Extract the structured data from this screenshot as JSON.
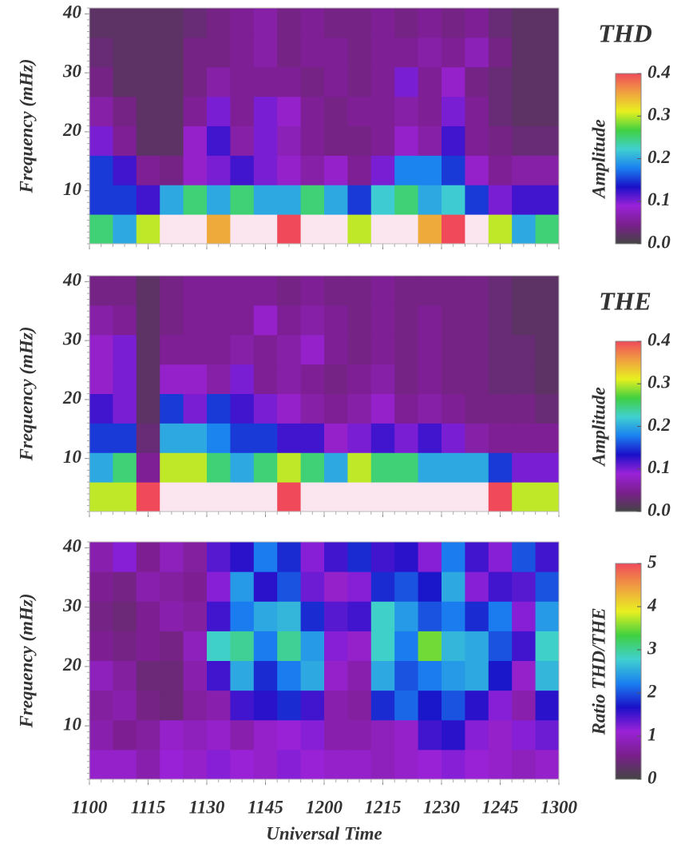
{
  "chart_data": [
    {
      "type": "heatmap",
      "title": "THD",
      "ylabel": "Frequency (mHz)",
      "xlim": [
        660,
        780
      ],
      "ylim": [
        1,
        41
      ],
      "yticks": [
        10,
        20,
        30,
        40
      ],
      "colorbar": {
        "label": "Amplitude",
        "lim": [
          0,
          0.4
        ],
        "ticks": [
          {
            "value": 0,
            "label": "0.0"
          },
          0.1,
          0.2,
          0.3,
          0.4
        ]
      },
      "colormap": [
        "#444444",
        "#7a1f8c",
        "#9a22d8",
        "#1a10c8",
        "#1a80f0",
        "#40d0d0",
        "#40d040",
        "#e8f020",
        "#f0a040",
        "#f04a5a"
      ],
      "over_color": "#fbe6f0",
      "z": [
        [
          0.25,
          0.2,
          0.3,
          0.45,
          0.45,
          0.35,
          0.45,
          0.45,
          0.4,
          0.45,
          0.45,
          0.3,
          0.45,
          0.45,
          0.35,
          0.4,
          0.45,
          0.3,
          0.2,
          0.25
        ],
        [
          0.15,
          0.15,
          0.12,
          0.2,
          0.25,
          0.2,
          0.25,
          0.2,
          0.2,
          0.25,
          0.2,
          0.15,
          0.22,
          0.25,
          0.2,
          0.22,
          0.15,
          0.1,
          0.12,
          0.12
        ],
        [
          0.15,
          0.12,
          0.05,
          0.04,
          0.08,
          0.1,
          0.12,
          0.1,
          0.08,
          0.06,
          0.08,
          0.05,
          0.1,
          0.18,
          0.18,
          0.15,
          0.08,
          0.05,
          0.06,
          0.06
        ],
        [
          0.1,
          0.05,
          0.02,
          0.02,
          0.08,
          0.12,
          0.06,
          0.1,
          0.07,
          0.05,
          0.04,
          0.04,
          0.05,
          0.08,
          0.06,
          0.12,
          0.05,
          0.04,
          0.03,
          0.03
        ],
        [
          0.06,
          0.04,
          0.02,
          0.02,
          0.05,
          0.1,
          0.05,
          0.1,
          0.08,
          0.05,
          0.04,
          0.05,
          0.05,
          0.06,
          0.05,
          0.1,
          0.05,
          0.03,
          0.02,
          0.02
        ],
        [
          0.04,
          0.02,
          0.02,
          0.02,
          0.04,
          0.06,
          0.05,
          0.05,
          0.05,
          0.04,
          0.05,
          0.04,
          0.05,
          0.1,
          0.05,
          0.08,
          0.04,
          0.03,
          0.02,
          0.02
        ],
        [
          0.03,
          0.02,
          0.02,
          0.02,
          0.04,
          0.04,
          0.05,
          0.06,
          0.04,
          0.05,
          0.05,
          0.04,
          0.05,
          0.05,
          0.06,
          0.05,
          0.07,
          0.04,
          0.02,
          0.02
        ],
        [
          0.02,
          0.02,
          0.02,
          0.02,
          0.03,
          0.04,
          0.05,
          0.06,
          0.04,
          0.05,
          0.04,
          0.04,
          0.05,
          0.04,
          0.05,
          0.04,
          0.05,
          0.03,
          0.02,
          0.02
        ]
      ]
    },
    {
      "type": "heatmap",
      "title": "THE",
      "ylabel": "Frequency (mHz)",
      "xlim": [
        660,
        780
      ],
      "ylim": [
        1,
        41
      ],
      "yticks": [
        10,
        20,
        30,
        40
      ],
      "colorbar": {
        "label": "Amplitude",
        "lim": [
          0,
          0.4
        ],
        "ticks": [
          {
            "value": 0,
            "label": "0.0"
          },
          0.1,
          0.2,
          0.3,
          0.4
        ]
      },
      "colormap": [
        "#444444",
        "#7a1f8c",
        "#9a22d8",
        "#1a10c8",
        "#1a80f0",
        "#40d0d0",
        "#40d040",
        "#e8f020",
        "#f0a040",
        "#f04a5a"
      ],
      "over_color": "#fbe6f0",
      "z": [
        [
          0.3,
          0.3,
          0.4,
          0.45,
          0.45,
          0.45,
          0.45,
          0.45,
          0.4,
          0.45,
          0.45,
          0.45,
          0.45,
          0.45,
          0.45,
          0.45,
          0.45,
          0.4,
          0.3,
          0.3
        ],
        [
          0.2,
          0.25,
          0.05,
          0.3,
          0.3,
          0.25,
          0.2,
          0.25,
          0.3,
          0.25,
          0.2,
          0.3,
          0.25,
          0.25,
          0.2,
          0.2,
          0.2,
          0.15,
          0.1,
          0.1
        ],
        [
          0.15,
          0.15,
          0.03,
          0.2,
          0.2,
          0.18,
          0.15,
          0.15,
          0.12,
          0.12,
          0.08,
          0.1,
          0.12,
          0.1,
          0.12,
          0.1,
          0.06,
          0.05,
          0.05,
          0.05
        ],
        [
          0.12,
          0.1,
          0.02,
          0.15,
          0.1,
          0.15,
          0.12,
          0.1,
          0.08,
          0.06,
          0.05,
          0.06,
          0.08,
          0.05,
          0.06,
          0.05,
          0.04,
          0.04,
          0.04,
          0.03
        ],
        [
          0.08,
          0.1,
          0.02,
          0.08,
          0.08,
          0.06,
          0.1,
          0.05,
          0.06,
          0.05,
          0.04,
          0.05,
          0.06,
          0.04,
          0.05,
          0.04,
          0.04,
          0.03,
          0.03,
          0.02
        ],
        [
          0.08,
          0.1,
          0.02,
          0.05,
          0.05,
          0.05,
          0.06,
          0.05,
          0.06,
          0.08,
          0.05,
          0.04,
          0.05,
          0.04,
          0.05,
          0.04,
          0.04,
          0.03,
          0.03,
          0.02
        ],
        [
          0.06,
          0.05,
          0.02,
          0.04,
          0.05,
          0.05,
          0.05,
          0.08,
          0.05,
          0.06,
          0.05,
          0.04,
          0.05,
          0.04,
          0.05,
          0.04,
          0.04,
          0.03,
          0.02,
          0.02
        ],
        [
          0.04,
          0.04,
          0.02,
          0.04,
          0.05,
          0.05,
          0.05,
          0.05,
          0.04,
          0.05,
          0.04,
          0.04,
          0.05,
          0.04,
          0.04,
          0.04,
          0.04,
          0.03,
          0.02,
          0.02
        ]
      ]
    },
    {
      "type": "heatmap",
      "ylabel": "Frequency (mHz)",
      "xlabel": "Universal Time",
      "xlim": [
        660,
        780
      ],
      "ylim": [
        1,
        41
      ],
      "yticks": [
        10,
        20,
        30,
        40
      ],
      "xticks": [
        {
          "value": 660,
          "label": "1100"
        },
        {
          "value": 675,
          "label": "1115"
        },
        {
          "value": 690,
          "label": "1130"
        },
        {
          "value": 705,
          "label": "1145"
        },
        {
          "value": 720,
          "label": "1200"
        },
        {
          "value": 735,
          "label": "1215"
        },
        {
          "value": 750,
          "label": "1230"
        },
        {
          "value": 765,
          "label": "1245"
        },
        {
          "value": 780,
          "label": "1300"
        }
      ],
      "colorbar": {
        "label": "Ratio THD/THE",
        "lim": [
          0,
          5
        ],
        "ticks": [
          0,
          1,
          2,
          3,
          4,
          5
        ]
      },
      "colormap": [
        "#444444",
        "#7a1f8c",
        "#9a22d8",
        "#1a10c8",
        "#1a80f0",
        "#40d0d0",
        "#40d040",
        "#e8f020",
        "#f0a040",
        "#f04a5a"
      ],
      "over_color": "#fbe6f0",
      "z": [
        [
          1,
          1,
          0.8,
          1.1,
          1,
          1.2,
          1.1,
          1,
          1.2,
          1.1,
          1,
          1,
          0.9,
          1,
          1.1,
          1.2,
          1.1,
          1,
          0.9,
          1
        ],
        [
          0.8,
          0.6,
          0.7,
          1,
          0.9,
          1,
          0.8,
          1,
          1.1,
          1.2,
          0.8,
          0.8,
          0.9,
          1,
          1.5,
          1.6,
          1.2,
          1,
          1.2,
          1.3
        ],
        [
          0.7,
          0.8,
          0.5,
          0.4,
          0.7,
          0.8,
          1.5,
          1.6,
          1.8,
          1.5,
          0.8,
          0.7,
          1.8,
          2.1,
          1.7,
          2,
          1.6,
          1.2,
          0.8,
          1.6
        ],
        [
          0.9,
          0.7,
          0.4,
          0.4,
          0.8,
          1.5,
          2.5,
          1.8,
          2.2,
          2.5,
          1,
          0.8,
          2.5,
          2,
          2.2,
          2.4,
          2.5,
          1.7,
          1,
          2.6
        ],
        [
          0.6,
          0.5,
          0.6,
          0.5,
          0.9,
          2.8,
          3,
          2.2,
          3,
          2.4,
          1.2,
          1,
          2.8,
          2.2,
          3.5,
          2.6,
          2.5,
          2,
          1.5,
          2.8
        ],
        [
          0.5,
          0.4,
          0.6,
          0.8,
          0.7,
          1.5,
          2.2,
          2.5,
          2.6,
          1.8,
          1.4,
          1.5,
          2.8,
          2.4,
          2,
          2.2,
          1.8,
          2.2,
          1.2,
          2.4
        ],
        [
          0.6,
          0.5,
          0.8,
          0.7,
          0.6,
          1.2,
          2.4,
          1.6,
          2,
          1.3,
          1,
          1.2,
          1.8,
          2,
          1.7,
          2.5,
          1.2,
          1.5,
          1.4,
          2
        ],
        [
          0.8,
          1.2,
          0.6,
          0.9,
          0.7,
          1.4,
          1.6,
          2.2,
          1.8,
          1.2,
          1.5,
          1.8,
          1.5,
          1.6,
          1.2,
          2.2,
          1.5,
          1.2,
          2,
          1.5
        ]
      ]
    }
  ]
}
